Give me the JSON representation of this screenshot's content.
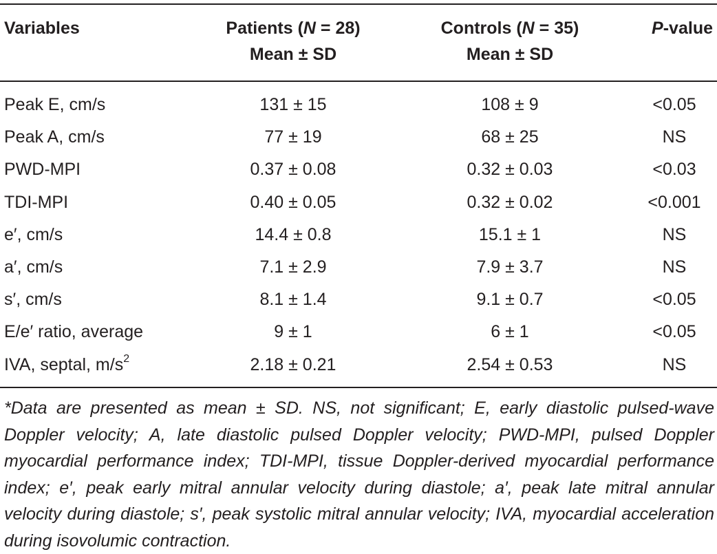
{
  "table": {
    "headers": {
      "variables": "Variables",
      "patients_prefix": "Patients (",
      "patients_n": "N",
      "patients_suffix": " = 28)",
      "controls_prefix": "Controls (",
      "controls_n": "N",
      "controls_suffix": " = 35)",
      "mean_sd": "Mean ± SD",
      "p_letter": "P",
      "p_suffix": "-value"
    },
    "rows": [
      {
        "variable": "Peak E, cm/s",
        "sup": "",
        "patients": "131 ± 15",
        "controls": "108 ± 9",
        "p": "<0.05"
      },
      {
        "variable": "Peak A, cm/s",
        "sup": "",
        "patients": "77 ± 19",
        "controls": "68 ± 25",
        "p": "NS"
      },
      {
        "variable": "PWD-MPI",
        "sup": "",
        "patients": "0.37 ± 0.08",
        "controls": "0.32 ± 0.03",
        "p": "<0.03"
      },
      {
        "variable": "TDI-MPI",
        "sup": "",
        "patients": "0.40 ± 0.05",
        "controls": "0.32 ± 0.02",
        "p": "<0.001"
      },
      {
        "variable": "e′, cm/s",
        "sup": "",
        "patients": "14.4 ± 0.8",
        "controls": "15.1 ± 1",
        "p": "NS"
      },
      {
        "variable": "a′, cm/s",
        "sup": "",
        "patients": "7.1 ± 2.9",
        "controls": "7.9 ± 3.7",
        "p": "NS"
      },
      {
        "variable": "s′, cm/s",
        "sup": "",
        "patients": "8.1 ± 1.4",
        "controls": "9.1 ± 0.7",
        "p": "<0.05"
      },
      {
        "variable": "E/e′ ratio, average",
        "sup": "",
        "patients": "9 ± 1",
        "controls": "6 ± 1",
        "p": "<0.05"
      },
      {
        "variable": "IVA, septal, m/s",
        "sup": "2",
        "patients": "2.18 ± 0.21",
        "controls": "2.54 ± 0.53",
        "p": "NS"
      }
    ],
    "footnote": "*Data are presented as mean ± SD. NS, not significant; E, early diastolic pulsed-wave Doppler velocity; A, late diastolic pulsed Doppler velocity; PWD-MPI, pulsed Doppler myocardial performance index; TDI-MPI, tissue Doppler-derived myocardial performance index; e′, peak early mitral annular velocity during diastole; a′, peak late mitral annular velocity during diastole; s′, peak systolic mitral annular velocity; IVA, myocardial acceleration during isovolumic contraction."
  }
}
